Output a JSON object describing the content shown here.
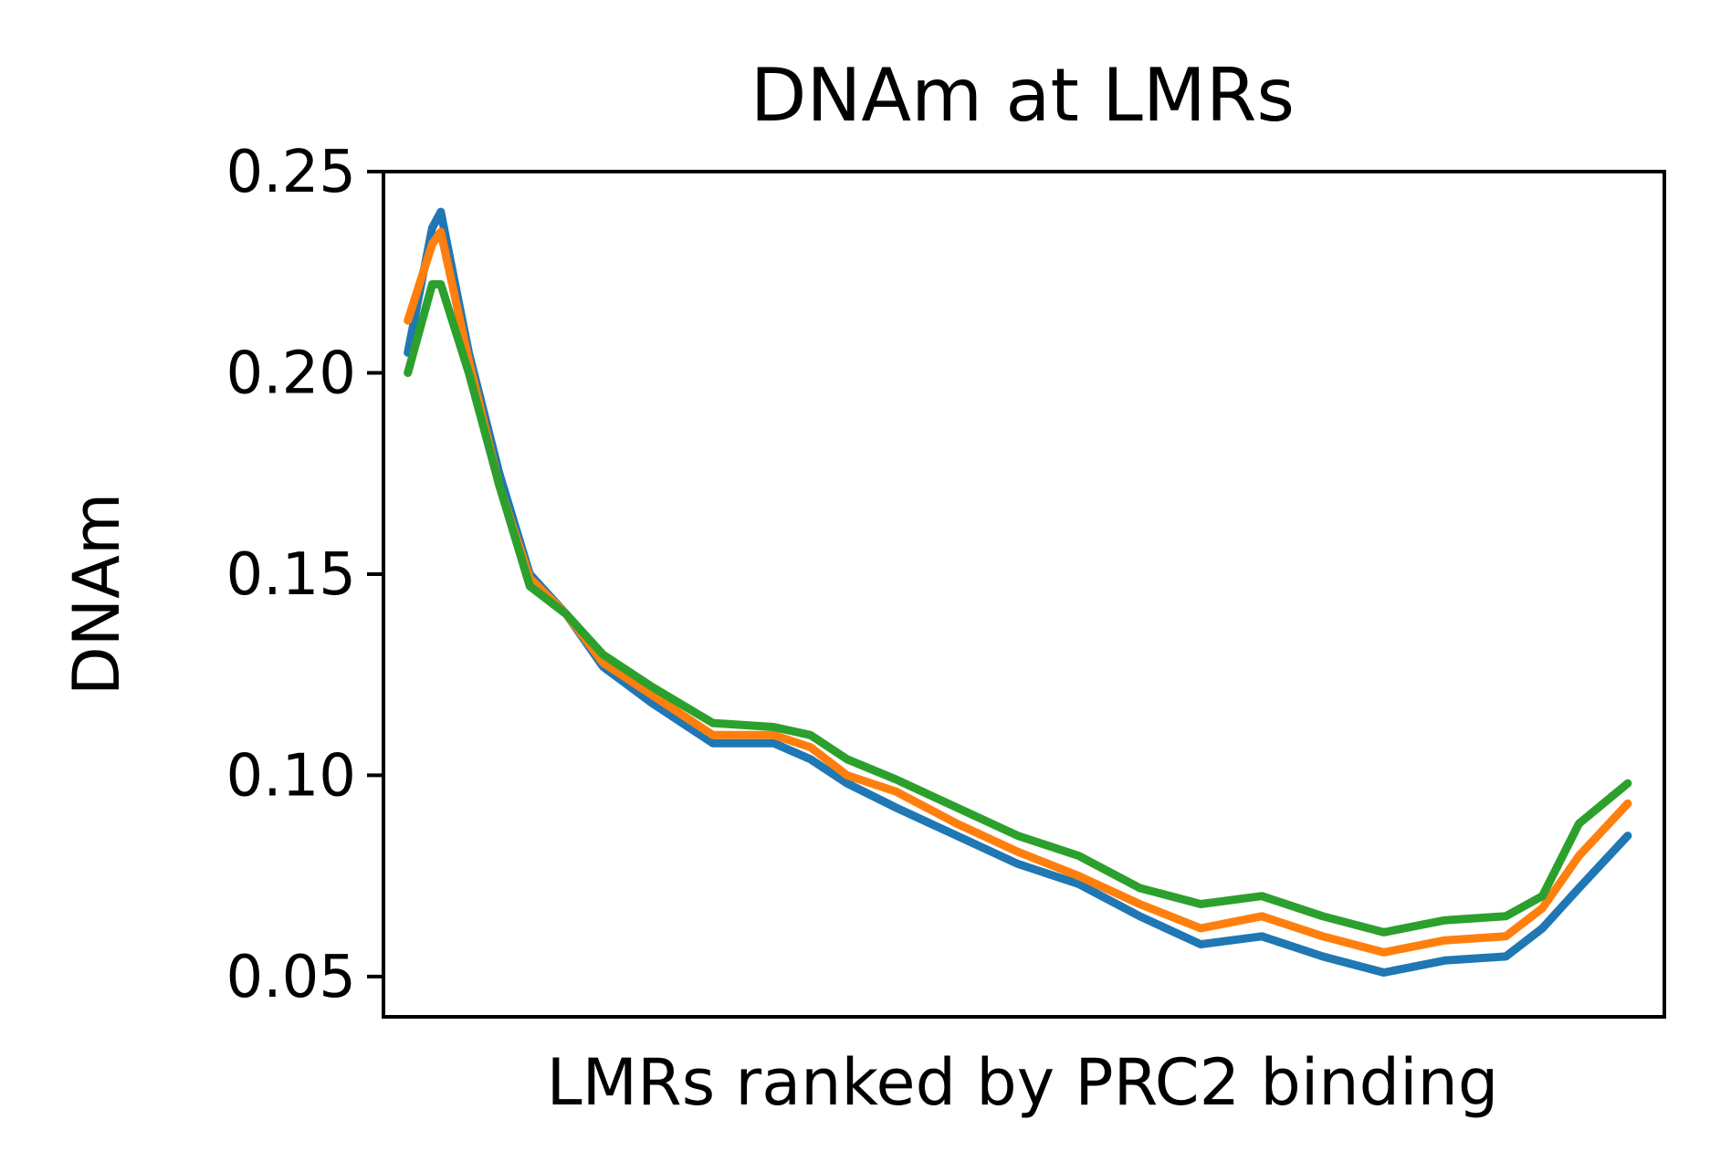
{
  "chart_data": {
    "type": "line",
    "title": "DNAm at LMRs",
    "xlabel": "LMRs ranked by PRC2 binding",
    "ylabel": "DNAm",
    "xlim": [
      -0.02,
      1.03
    ],
    "ylim": [
      0.04,
      0.25
    ],
    "yticks": [
      "0.05",
      "0.10",
      "0.15",
      "0.20",
      "0.25"
    ],
    "xticks": [],
    "grid": false,
    "legend": "none",
    "colors": [
      "#1f77b4",
      "#ff7f0e",
      "#2ca02c"
    ],
    "x": [
      0,
      0.02,
      0.027,
      0.05,
      0.075,
      0.1,
      0.13,
      0.16,
      0.2,
      0.25,
      0.3,
      0.33,
      0.36,
      0.4,
      0.45,
      0.5,
      0.55,
      0.6,
      0.65,
      0.7,
      0.75,
      0.8,
      0.85,
      0.9,
      0.93,
      0.96,
      1.0
    ],
    "series": [
      {
        "values": [
          0.205,
          0.236,
          0.24,
          0.205,
          0.175,
          0.15,
          0.14,
          0.127,
          0.118,
          0.108,
          0.108,
          0.104,
          0.098,
          0.092,
          0.085,
          0.078,
          0.073,
          0.065,
          0.058,
          0.06,
          0.055,
          0.051,
          0.054,
          0.055,
          0.062,
          0.072,
          0.085
        ]
      },
      {
        "values": [
          0.213,
          0.232,
          0.235,
          0.203,
          0.172,
          0.149,
          0.14,
          0.128,
          0.12,
          0.11,
          0.11,
          0.107,
          0.1,
          0.096,
          0.088,
          0.081,
          0.075,
          0.068,
          0.062,
          0.065,
          0.06,
          0.056,
          0.059,
          0.06,
          0.067,
          0.08,
          0.093
        ]
      },
      {
        "values": [
          0.2,
          0.222,
          0.222,
          0.2,
          0.172,
          0.147,
          0.14,
          0.13,
          0.122,
          0.113,
          0.112,
          0.11,
          0.104,
          0.099,
          0.092,
          0.085,
          0.08,
          0.072,
          0.068,
          0.07,
          0.065,
          0.061,
          0.064,
          0.065,
          0.07,
          0.088,
          0.098
        ]
      }
    ]
  }
}
